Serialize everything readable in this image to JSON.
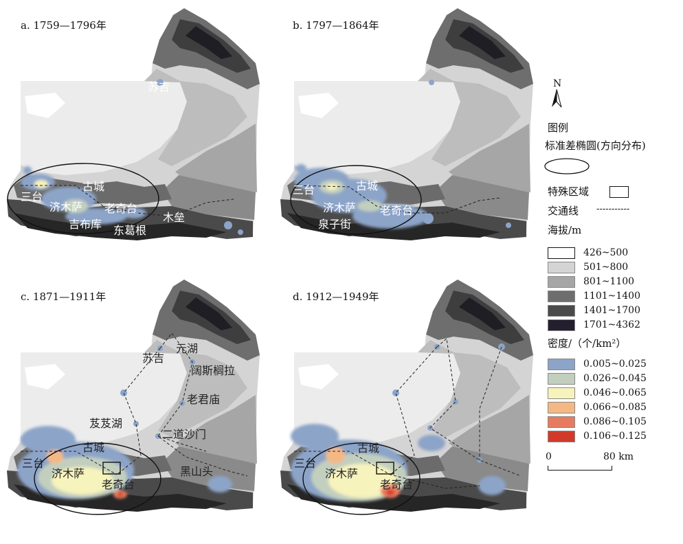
{
  "panels": [
    {
      "label": "a. 1759—1796年",
      "places": [
        "苏吉",
        "三台",
        "古城",
        "济木萨",
        "老奇台",
        "吉布库",
        "东葛根",
        "木垒"
      ]
    },
    {
      "label": "b. 1797—1864年",
      "places": [
        "三台",
        "古城",
        "济木萨",
        "老奇台",
        "泉子街"
      ]
    },
    {
      "label": "c. 1871—1911年",
      "places": [
        "苏吉",
        "元湖",
        "阔斯榈拉",
        "老君庙",
        "芨芨湖",
        "二道沙门",
        "古城",
        "三台",
        "济木萨",
        "老奇台",
        "黑山头"
      ]
    },
    {
      "label": "d. 1912—1949年",
      "places": [
        "三台",
        "古城",
        "济木萨",
        "老奇台"
      ]
    }
  ],
  "legend": {
    "north": "N",
    "title": "图例",
    "ellipse_label": "标准差椭圆(方向分布)",
    "special_label": "特殊区域",
    "road_label": "交通线",
    "road_symbol": "-----------",
    "elevation_title": "海拔/m",
    "elevation": [
      {
        "range": "426~500",
        "color": "#ffffff"
      },
      {
        "range": "501~800",
        "color": "#d4d4d4"
      },
      {
        "range": "801~1100",
        "color": "#a6a6a6"
      },
      {
        "range": "1101~1400",
        "color": "#6e6e6e"
      },
      {
        "range": "1401~1700",
        "color": "#4a4a4a"
      },
      {
        "range": "1701~4362",
        "color": "#231f2e"
      }
    ],
    "density_title": "密度/（个/km²）",
    "density": [
      {
        "range": "0.005~0.025",
        "color": "#8ca4c8"
      },
      {
        "range": "0.026~0.045",
        "color": "#c3cfbe"
      },
      {
        "range": "0.046~0.065",
        "color": "#f7f3bd"
      },
      {
        "range": "0.066~0.085",
        "color": "#f4b885"
      },
      {
        "range": "0.086~0.105",
        "color": "#e77b5f"
      },
      {
        "range": "0.106~0.125",
        "color": "#d13a2b"
      }
    ],
    "scale_zero": "0",
    "scale_end": "80 km"
  }
}
